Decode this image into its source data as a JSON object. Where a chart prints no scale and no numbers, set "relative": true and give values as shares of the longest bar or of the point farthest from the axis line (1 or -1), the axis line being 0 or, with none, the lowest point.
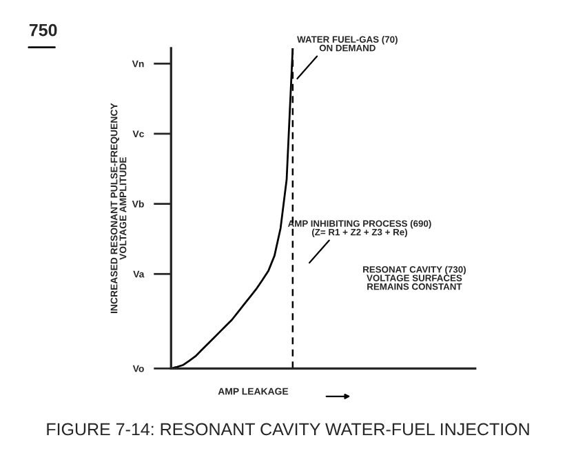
{
  "chart_data": {
    "type": "line",
    "title": "FIGURE 7-14: RESONANT CAVITY WATER-FUEL INJECTION",
    "xlabel": "AMP LEAKAGE",
    "ylabel": "INCREASED RESONANT PULSE-FREQUENCY\nVOLTAGE AMPLITUDE",
    "categories": [
      null,
      null,
      null,
      null,
      null,
      null,
      null,
      null,
      null,
      null,
      null,
      null,
      null,
      null,
      null,
      null,
      null,
      null,
      null,
      null,
      null,
      null,
      null,
      null,
      null,
      null,
      null,
      null,
      null,
      null,
      null,
      null,
      null,
      null,
      null,
      null,
      null,
      null,
      null,
      null,
      null,
      null,
      null,
      null,
      null,
      null,
      null,
      null,
      null,
      null,
      null
    ],
    "series": [
      {
        "color": "#000000",
        "values": [
          0,
          0.005,
          0.011,
          0.024,
          0.038,
          0.057,
          0.076,
          0.095,
          0.114,
          0.133,
          0.152,
          0.176,
          0.2,
          0.224,
          0.248,
          0.276,
          0.305,
          0.352,
          0.438,
          0.59,
          1,
          null,
          null,
          null,
          null,
          null,
          null,
          null,
          null,
          null,
          null,
          null,
          null,
          null,
          null,
          null,
          null,
          null,
          null,
          null,
          null,
          null,
          null,
          null,
          null,
          null,
          null,
          null,
          null,
          null,
          null
        ]
      }
    ],
    "relative": true,
    "grid": false,
    "marker": "none",
    "line_style": "solid",
    "annotations": [
      "750",
      "RESONAT CAVITY (730)\nVOLTAGE SURFACES\nREMAINS CONSTANT",
      "WATER FUEL-GAS (70)\nON DEMAND",
      "AMP INHIBITING PROCESS (690)\n(Z= R1 + Z2 + Z3 + Re)",
      "Vo",
      "Va",
      "Vb",
      "Vc",
      "Vn"
    ]
  }
}
